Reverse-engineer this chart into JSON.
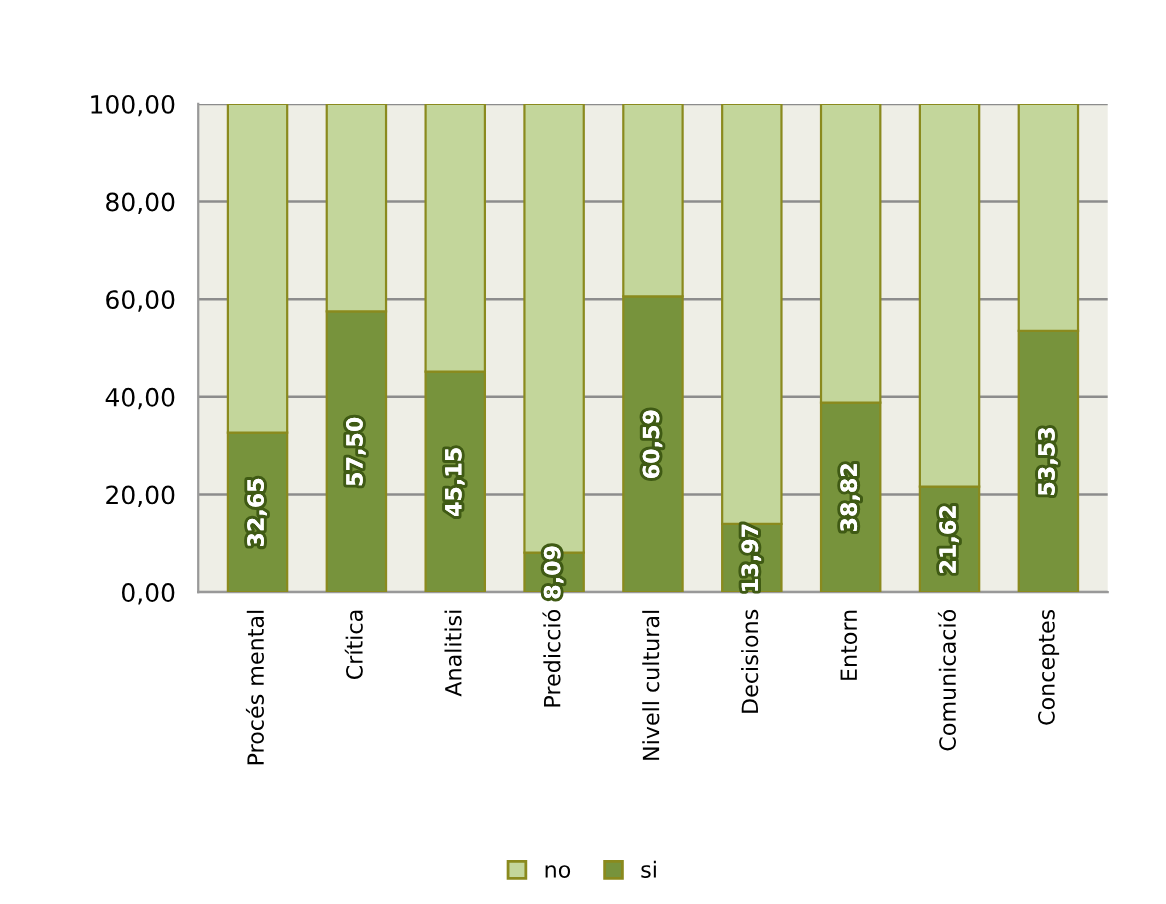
{
  "chart_data": {
    "type": "bar",
    "stacked": true,
    "categories": [
      "Procés mental",
      "Crítica",
      "Analitisi",
      "Predicció",
      "Nivell cultural",
      "Decisions",
      "Entorn",
      "Comunicació",
      "Conceptes"
    ],
    "series": [
      {
        "name": "si",
        "color": "#77933c",
        "values": [
          32.65,
          57.5,
          45.15,
          8.09,
          60.59,
          13.97,
          38.82,
          21.62,
          53.53
        ],
        "value_labels": [
          "32,65",
          "57,50",
          "45,15",
          "8,09",
          "60,59",
          "13,97",
          "38,82",
          "21,62",
          "53,53"
        ]
      },
      {
        "name": "no",
        "color": "#c3d69b",
        "values": [
          67.35,
          42.5,
          54.85,
          91.91,
          39.41,
          86.03,
          61.18,
          78.38,
          46.47
        ]
      }
    ],
    "ylim": [
      0,
      100
    ],
    "yticks": [
      {
        "value": 0,
        "label": "0,00"
      },
      {
        "value": 20,
        "label": "20,00"
      },
      {
        "value": 40,
        "label": "40,00"
      },
      {
        "value": 60,
        "label": "60,00"
      },
      {
        "value": 80,
        "label": "80,00"
      },
      {
        "value": 100,
        "label": "100,00"
      }
    ],
    "grid": "y",
    "legend": "bottom"
  }
}
